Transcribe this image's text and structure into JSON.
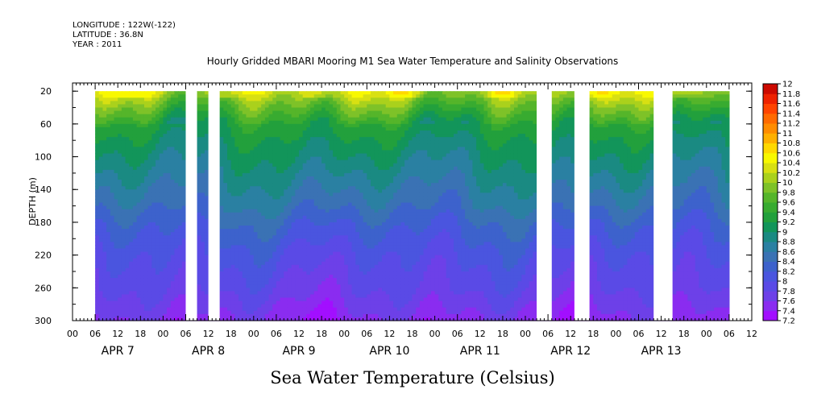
{
  "header": {
    "longitude": "LONGITUDE : 122W(-122)",
    "latitude": "LATITUDE : 36.8N",
    "year": "YEAR : 2011"
  },
  "chart_data": {
    "type": "heatmap",
    "title": "Hourly Gridded MBARI Mooring M1 Sea Water Temperature and Salinity Observations",
    "xlabel": "",
    "ylabel": "DEPTH (m)",
    "colorbar_title": "Sea Water Temperature (Celsius)",
    "y_axis": {
      "range": [
        300,
        10
      ],
      "ticks": [
        20,
        60,
        100,
        140,
        180,
        220,
        260,
        300
      ]
    },
    "x_axis": {
      "range_hours": [
        -6,
        174
      ],
      "hour_tick_labels": [
        "00",
        "06",
        "12",
        "18",
        "00",
        "06",
        "12",
        "18",
        "00",
        "06",
        "12",
        "18",
        "00",
        "06",
        "12",
        "18",
        "00",
        "06",
        "12",
        "18",
        "00",
        "06",
        "12",
        "18",
        "00",
        "06",
        "12",
        "18",
        "00",
        "06",
        "12",
        "18"
      ],
      "day_labels": [
        "APR  7",
        "APR  8",
        "APR  9",
        "APR 10",
        "APR 11",
        "APR 12",
        "APR 13"
      ]
    },
    "colorbar_levels": [
      7.2,
      7.4,
      7.6,
      7.8,
      8,
      8.2,
      8.4,
      8.6,
      8.8,
      9,
      9.2,
      9.4,
      9.6,
      9.8,
      10,
      10.2,
      10.4,
      10.6,
      10.8,
      11,
      11.2,
      11.4,
      11.6,
      11.8,
      12
    ],
    "colorbar_labels": [
      "7.2",
      "7.4",
      "7.6",
      "7.8",
      "8",
      "8.2",
      "8.4",
      "8.6",
      "8.8",
      "9",
      "9.2",
      "9.4",
      "9.6",
      "9.8",
      "10",
      "10.2",
      "10.4",
      "10.6",
      "10.8",
      "11",
      "11.2",
      "11.4",
      "11.6",
      "11.8",
      "12"
    ],
    "colors": [
      "#a20fff",
      "#8a2cf0",
      "#6d40e8",
      "#5a4ae6",
      "#4a55df",
      "#3d62cc",
      "#3a72b4",
      "#2a80a2",
      "#1a8a82",
      "#12955a",
      "#22a03c",
      "#38ab30",
      "#55b52a",
      "#7ec228",
      "#aad11c",
      "#d8e012",
      "#f8f800",
      "#ffd800",
      "#ffb000",
      "#ff8c00",
      "#ff6a00",
      "#ff4400",
      "#ee2200",
      "#cc0a00",
      "#a80000"
    ],
    "data_gaps_hours": [
      [
        24,
        27
      ],
      [
        30,
        33
      ],
      [
        117,
        121
      ],
      [
        127,
        131
      ],
      [
        148,
        153
      ]
    ],
    "data_coverage_hours": [
      0,
      168
    ],
    "description_profile": {
      "depth_m": [
        20,
        40,
        60,
        80,
        100,
        120,
        140,
        160,
        180,
        200,
        220,
        240,
        260,
        280,
        300
      ],
      "temperature_c": [
        10.2,
        9.7,
        9.3,
        9.1,
        8.95,
        8.8,
        8.65,
        8.5,
        8.3,
        8.15,
        8.0,
        7.9,
        7.8,
        7.65,
        7.5
      ]
    },
    "grid": false,
    "legend": "right"
  }
}
